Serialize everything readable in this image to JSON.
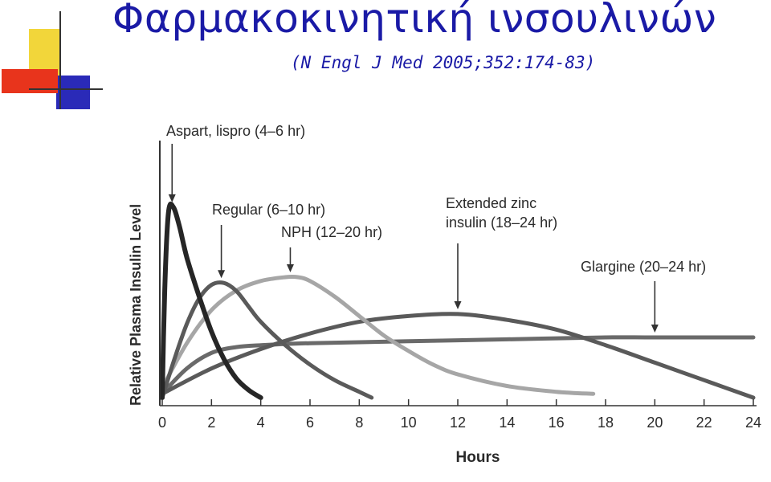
{
  "slide": {
    "title": "Φαρμακοκινητική ινσουλινών",
    "subtitle": "(N Engl J Med 2005;352:174-83)"
  },
  "colors": {
    "title": "#1a1aa6",
    "logo_yellow": "#f2d63a",
    "logo_red": "#e8341c",
    "logo_blue": "#2a2ab8"
  },
  "chart_data": {
    "type": "line",
    "xlabel": "Hours",
    "ylabel": "Relative Plasma Insulin Level",
    "xlim": [
      0,
      24
    ],
    "ylim": [
      0,
      1
    ],
    "xticks": [
      0,
      2,
      4,
      6,
      8,
      10,
      12,
      14,
      16,
      18,
      20,
      22,
      24
    ],
    "grid": false,
    "series": [
      {
        "name": "Aspart, lispro (4–6 hr)",
        "color": "#262626",
        "x": [
          0,
          0.1,
          0.25,
          0.45,
          0.7,
          1,
          1.5,
          2,
          2.5,
          3,
          3.5,
          4
        ],
        "y": [
          0,
          0.55,
          0.95,
          0.98,
          0.88,
          0.72,
          0.52,
          0.34,
          0.2,
          0.1,
          0.04,
          0
        ]
      },
      {
        "name": "Regular (6–10 hr)",
        "color": "#5a5a5a",
        "x": [
          0,
          0.5,
          1,
          1.5,
          2,
          2.5,
          3,
          3.5,
          4,
          5,
          6,
          7,
          8,
          8.5
        ],
        "y": [
          0,
          0.2,
          0.38,
          0.51,
          0.58,
          0.59,
          0.55,
          0.47,
          0.39,
          0.27,
          0.17,
          0.09,
          0.03,
          0
        ]
      },
      {
        "name": "NPH (12–20 hr)",
        "color": "#a6a6a6",
        "x": [
          0,
          1,
          2,
          3,
          4,
          5,
          5.5,
          6,
          7,
          8,
          9,
          10,
          11,
          12,
          14,
          16,
          17.5
        ],
        "y": [
          0.05,
          0.28,
          0.45,
          0.55,
          0.6,
          0.62,
          0.62,
          0.6,
          0.52,
          0.42,
          0.32,
          0.24,
          0.17,
          0.12,
          0.06,
          0.03,
          0.02
        ]
      },
      {
        "name": "Extended zinc insulin (18–24 hr)",
        "color": "#5a5a5a",
        "x": [
          0,
          2,
          4,
          6,
          8,
          10,
          12,
          14,
          16,
          18,
          20,
          22,
          24
        ],
        "y": [
          0.02,
          0.15,
          0.25,
          0.33,
          0.39,
          0.42,
          0.43,
          0.4,
          0.35,
          0.27,
          0.18,
          0.09,
          0
        ]
      },
      {
        "name": "Glargine (20–24 hr)",
        "color": "#6a6a6a",
        "x": [
          0,
          1,
          2,
          3,
          4,
          6,
          10,
          14,
          18,
          20,
          24
        ],
        "y": [
          0.02,
          0.15,
          0.23,
          0.26,
          0.27,
          0.28,
          0.29,
          0.3,
          0.31,
          0.31,
          0.31
        ]
      }
    ],
    "annotations": [
      {
        "text": "Aspart, lispro (4–6 hr)",
        "x": 0.4,
        "y": 0.98
      },
      {
        "text": "Regular (6–10 hr)",
        "x": 2.4,
        "y": 0.59
      },
      {
        "text": "NPH (12–20 hr)",
        "x": 5.2,
        "y": 0.62
      },
      {
        "text": "Extended zinc\ninsulin (18–24 hr)",
        "x": 12,
        "y": 0.43
      },
      {
        "text": "Glargine (20–24 hr)",
        "x": 20,
        "y": 0.31
      }
    ]
  }
}
